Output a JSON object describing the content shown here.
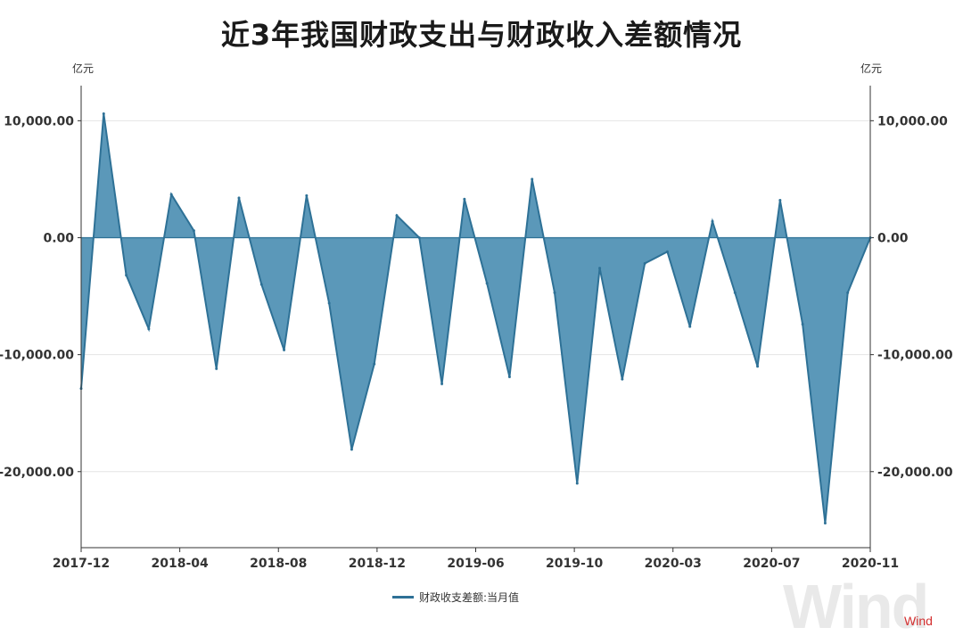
{
  "title": "近3年我国财政支出与财政收入差额情况",
  "unit_left": "亿元",
  "unit_right": "亿元",
  "legend_label": "财政收支差额:当月值",
  "watermark": "Wind",
  "brand": "Wind",
  "colors": {
    "series": "#2e7196",
    "fill": "#5b98b9",
    "brand": "#d32f2f",
    "grid": "#e4e4e4",
    "axis": "#333333"
  },
  "chart_data": {
    "type": "area",
    "title": "近3年我国财政支出与财政收入差额情况",
    "ylabel": "亿元",
    "ylim": [
      -26500,
      13000
    ],
    "yticks": [
      10000,
      0,
      -10000,
      -20000
    ],
    "ytick_labels": [
      "10,000.00",
      "0.00",
      "-10,000.00",
      "-20,000.00"
    ],
    "xtick_labels": [
      "2017-12",
      "2018-04",
      "2018-08",
      "2018-12",
      "2019-06",
      "2019-10",
      "2020-03",
      "2020-07",
      "2020-11"
    ],
    "grid": true,
    "legend": "bottom-center",
    "series": [
      {
        "name": "财政收支差额:当月值",
        "x": [
          "2017-12",
          "2018-01",
          "2018-02",
          "2018-03",
          "2018-04",
          "2018-05",
          "2018-06",
          "2018-07",
          "2018-08",
          "2018-09",
          "2018-10",
          "2018-11",
          "2018-12",
          "2019-01",
          "2019-02",
          "2019-03",
          "2019-04",
          "2019-05",
          "2019-06",
          "2019-07",
          "2019-08",
          "2019-09",
          "2019-10",
          "2019-11",
          "2019-12",
          "2020-01",
          "2020-03",
          "2020-04",
          "2020-05",
          "2020-06",
          "2020-07",
          "2020-08",
          "2020-09",
          "2020-10",
          "2020-11",
          "2020-12"
        ],
        "values": [
          -12900,
          10600,
          -3200,
          -7800,
          3700,
          600,
          -11200,
          3400,
          -4000,
          -9600,
          3600,
          -5600,
          -18100,
          -10800,
          1900,
          0,
          -12500,
          3300,
          -3900,
          -11900,
          5000,
          -4700,
          -21000,
          -2600,
          -12100,
          -2200,
          -1200,
          -7600,
          1400,
          -4700,
          -11000,
          3200,
          -7400,
          -24400,
          -4700,
          0
        ]
      }
    ]
  }
}
